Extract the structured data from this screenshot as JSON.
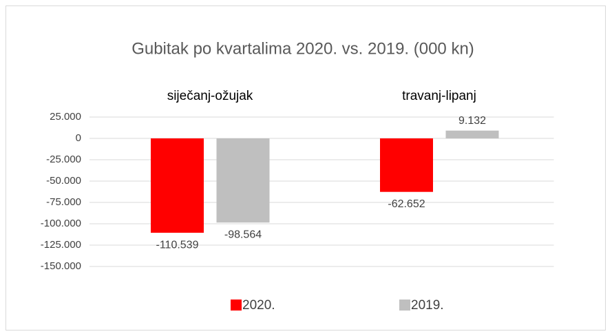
{
  "chart_data": {
    "type": "bar",
    "title": "Gubitak po kvartalima 2020. vs. 2019. (000 kn)",
    "categories": [
      "siječanj-ožujak",
      "travanj-lipanj"
    ],
    "series": [
      {
        "name": "2020.",
        "color": "#ff0000",
        "values": [
          -110539,
          -62652
        ],
        "value_labels": [
          "-110.539",
          "-62.652"
        ]
      },
      {
        "name": "2019.",
        "color": "#bfbfbf",
        "values": [
          -98564,
          9132
        ],
        "value_labels": [
          "-98.564",
          "9.132"
        ]
      }
    ],
    "ylim": [
      -150000,
      25000
    ],
    "yticks": [
      {
        "value": 25000,
        "label": "25.000"
      },
      0,
      {
        "value": -25000,
        "label": "-25.000"
      },
      {
        "value": -50000,
        "label": "-50.000"
      },
      {
        "value": -75000,
        "label": "-75.000"
      },
      {
        "value": -100000,
        "label": "-100.000"
      },
      {
        "value": -125000,
        "label": "-125.000"
      },
      {
        "value": -150000,
        "label": "-150.000"
      }
    ],
    "grid": true,
    "legend": "bottom"
  }
}
